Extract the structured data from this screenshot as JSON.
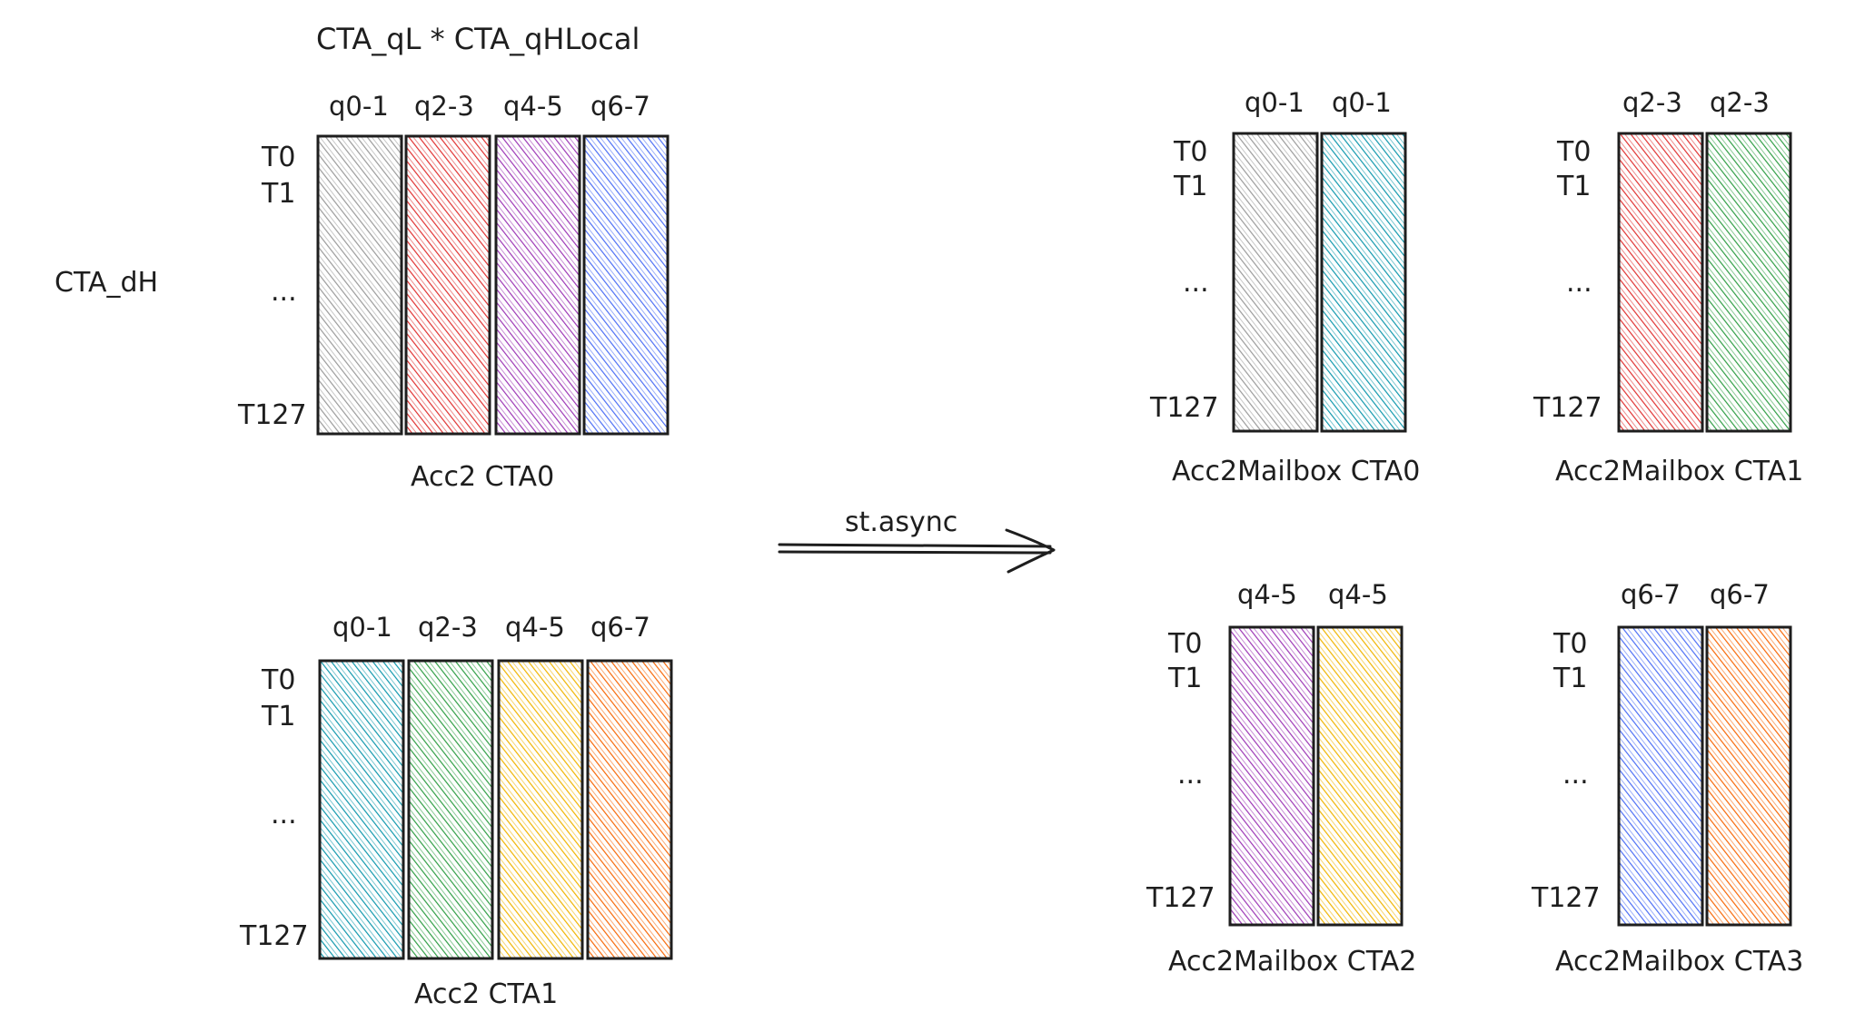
{
  "header": {
    "formula": "CTA_qL * CTA_qHLocal",
    "side_label": "CTA_dH"
  },
  "arrow": {
    "label": "st.async"
  },
  "row_labels": {
    "first": "T0",
    "second": "T1",
    "ellipsis": "...",
    "last": "T127"
  },
  "colors": {
    "gray": "#9a9a9a",
    "red": "#e03131",
    "purple": "#9c36b5",
    "blue": "#4c6ef5",
    "teal": "#1098ad",
    "green": "#2f9e44",
    "yellow": "#f0b400",
    "orange": "#f76707"
  },
  "acc_blocks": [
    {
      "caption": "Acc2 CTA0",
      "columns": [
        {
          "label": "q0-1",
          "color": "gray"
        },
        {
          "label": "q2-3",
          "color": "red"
        },
        {
          "label": "q4-5",
          "color": "purple"
        },
        {
          "label": "q6-7",
          "color": "blue"
        }
      ]
    },
    {
      "caption": "Acc2 CTA1",
      "columns": [
        {
          "label": "q0-1",
          "color": "teal"
        },
        {
          "label": "q2-3",
          "color": "green"
        },
        {
          "label": "q4-5",
          "color": "yellow"
        },
        {
          "label": "q6-7",
          "color": "orange"
        }
      ]
    }
  ],
  "mailboxes": [
    {
      "caption": "Acc2Mailbox CTA0",
      "columns": [
        {
          "label": "q0-1",
          "color": "gray"
        },
        {
          "label": "q0-1",
          "color": "teal"
        }
      ]
    },
    {
      "caption": "Acc2Mailbox CTA1",
      "columns": [
        {
          "label": "q2-3",
          "color": "red"
        },
        {
          "label": "q2-3",
          "color": "green"
        }
      ]
    },
    {
      "caption": "Acc2Mailbox CTA2",
      "columns": [
        {
          "label": "q4-5",
          "color": "purple"
        },
        {
          "label": "q4-5",
          "color": "yellow"
        }
      ]
    },
    {
      "caption": "Acc2Mailbox CTA3",
      "columns": [
        {
          "label": "q6-7",
          "color": "blue"
        },
        {
          "label": "q6-7",
          "color": "orange"
        }
      ]
    }
  ]
}
